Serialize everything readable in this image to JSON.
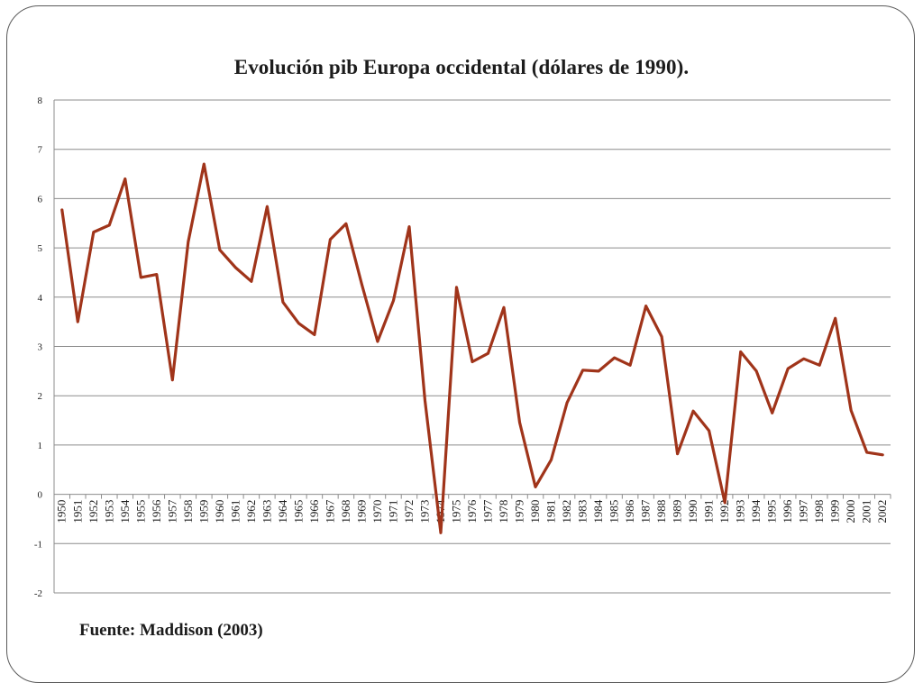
{
  "chart_data": {
    "type": "line",
    "title": "Evolución pib Europa occidental (dólares de 1990).",
    "xlabel": "",
    "ylabel": "",
    "ylim": [
      -2,
      8
    ],
    "y_ticks": [
      "-2",
      "-1",
      "0",
      "1",
      "2",
      "3",
      "4",
      "5",
      "6",
      "7",
      "8"
    ],
    "grid": true,
    "legend": "none",
    "line_color": "#a0341a",
    "categories": [
      "1950",
      "1951",
      "1952",
      "1953",
      "1954",
      "1955",
      "1956",
      "1957",
      "1958",
      "1959",
      "1960",
      "1961",
      "1962",
      "1963",
      "1964",
      "1965",
      "1966",
      "1967",
      "1968",
      "1969",
      "1970",
      "1971",
      "1972",
      "1973",
      "1974",
      "1975",
      "1976",
      "1977",
      "1978",
      "1979",
      "1980",
      "1981",
      "1982",
      "1983",
      "1984",
      "1985",
      "1986",
      "1987",
      "1988",
      "1989",
      "1990",
      "1991",
      "1992",
      "1993",
      "1994",
      "1995",
      "1996",
      "1997",
      "1998",
      "1999",
      "2000",
      "2001",
      "2002"
    ],
    "values": [
      5.77,
      3.5,
      5.32,
      5.46,
      6.4,
      4.4,
      4.46,
      2.32,
      5.12,
      6.7,
      4.96,
      4.6,
      4.32,
      5.84,
      3.9,
      3.47,
      3.24,
      5.17,
      5.49,
      4.26,
      3.1,
      3.93,
      5.43,
      1.9,
      -0.78,
      4.2,
      2.69,
      2.86,
      3.79,
      1.46,
      0.15,
      0.7,
      1.86,
      2.52,
      2.5,
      2.77,
      2.62,
      3.82,
      3.2,
      0.82,
      1.69,
      1.29,
      -0.17,
      2.89,
      2.5,
      1.65,
      2.55,
      2.75,
      2.62,
      3.57,
      1.7,
      0.85,
      0.8
    ]
  },
  "source": "Fuente: Maddison (2003)"
}
